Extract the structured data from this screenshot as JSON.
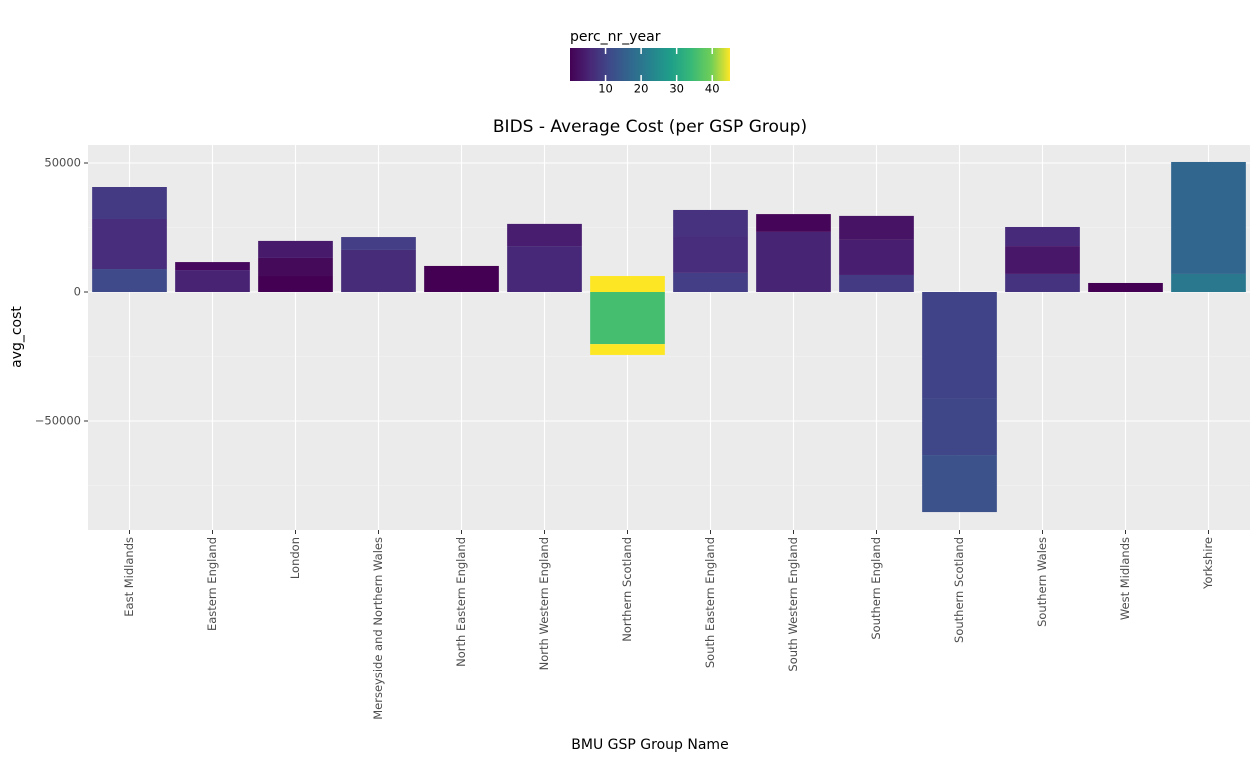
{
  "chart_data": {
    "type": "stacked_bar",
    "title": "BIDS - Average Cost (per GSP Group)",
    "x_label": "BMU GSP Group Name",
    "y_label": "avg_cost",
    "categories": [
      "East Midlands",
      "Eastern England",
      "London",
      "Merseyside and Northern Wales",
      "North Eastern England",
      "North Western England",
      "Northern Scotland",
      "South Eastern England",
      "South Western England",
      "Southern England",
      "Southern Scotland",
      "Southern Wales",
      "West Midlands",
      "Yorkshire"
    ],
    "segments": [
      [
        {
          "value": 8900,
          "color": "#3e4a89"
        },
        {
          "value": 19400,
          "color": "#472d7b"
        },
        {
          "value": 12400,
          "color": "#443983"
        }
      ],
      [
        {
          "value": 8500,
          "color": "#482374"
        },
        {
          "value": 3100,
          "color": "#46085c"
        }
      ],
      [
        {
          "value": 6200,
          "color": "#440154"
        },
        {
          "value": 7000,
          "color": "#450b5a"
        },
        {
          "value": 6600,
          "color": "#481a6c"
        }
      ],
      [
        {
          "value": 16300,
          "color": "#472c7a"
        },
        {
          "value": 5000,
          "color": "#433e85"
        }
      ],
      [
        {
          "value": 10100,
          "color": "#440154"
        }
      ],
      [
        {
          "value": 17800,
          "color": "#472878"
        },
        {
          "value": 8600,
          "color": "#481c6e"
        }
      ],
      [
        {
          "value": 6200,
          "color": "#fde725"
        },
        {
          "value": -20200,
          "color": "#45bf6f"
        },
        {
          "value": -4200,
          "color": "#fde725"
        }
      ],
      [
        {
          "value": 7400,
          "color": "#433e85"
        },
        {
          "value": 14300,
          "color": "#472d7b"
        },
        {
          "value": 10100,
          "color": "#46327e"
        }
      ],
      [
        {
          "value": 23300,
          "color": "#482475"
        },
        {
          "value": 6900,
          "color": "#450559"
        }
      ],
      [
        {
          "value": 6600,
          "color": "#443983"
        },
        {
          "value": 13600,
          "color": "#481f70"
        },
        {
          "value": 9300,
          "color": "#471365"
        }
      ],
      [
        {
          "value": -41100,
          "color": "#404387"
        },
        {
          "value": -22100,
          "color": "#3f4788"
        },
        {
          "value": -22100,
          "color": "#3b528b"
        }
      ],
      [
        {
          "value": 7000,
          "color": "#46337f"
        },
        {
          "value": 10800,
          "color": "#481769"
        },
        {
          "value": 7400,
          "color": "#472a7a"
        }
      ],
      [
        {
          "value": 3500,
          "color": "#440154"
        }
      ],
      [
        {
          "value": 7000,
          "color": "#2a788e"
        },
        {
          "value": 43400,
          "color": "#31668e"
        }
      ]
    ],
    "ylim": [
      -92250,
      56980
    ],
    "yticks": [
      {
        "value": -50000,
        "label": "−50000"
      },
      0,
      50000
    ],
    "minor_yticks": [
      -75000,
      -25000,
      25000
    ],
    "grid": true,
    "legend": {
      "title": "perc_nr_year",
      "lim": [
        0,
        45
      ],
      "ticks": [
        10,
        20,
        30,
        40
      ]
    }
  }
}
